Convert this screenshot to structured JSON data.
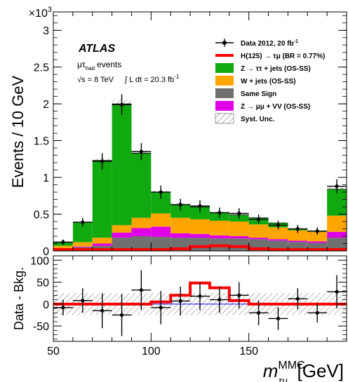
{
  "chart_data": [
    {
      "type": "bar",
      "stacked": true,
      "xlabel": "m",
      "xlabel_sup": "MMC",
      "xlabel_sub": "τμ",
      "xlabel_unit": "[GeV]",
      "ylabel": "Events / 10 GeV",
      "y_multiplier": "×10",
      "y_multiplier_exp": "3",
      "xlim": [
        50,
        200
      ],
      "ylim": [
        0,
        3.25
      ],
      "x_ticks": [
        50,
        100,
        150
      ],
      "y_ticks": [
        0,
        0.5,
        1,
        1.5,
        2,
        2.5,
        3
      ],
      "experiment": "ATLAS",
      "channel_mu": "μτ",
      "channel_sub": "had",
      "channel_suffix": "events",
      "energy_label": "√s = 8 TeV",
      "lumi_label": "∫ L dt = 20.3 fb",
      "lumi_exp": "-1",
      "legend_position": "top-right",
      "bin_edges": [
        50,
        60,
        70,
        80,
        90,
        100,
        110,
        120,
        130,
        140,
        150,
        160,
        170,
        180,
        190,
        200
      ],
      "series": [
        {
          "name": "Same Sign",
          "color": "#707070",
          "values": [
            0.04,
            0.05,
            0.07,
            0.18,
            0.2,
            0.19,
            0.18,
            0.18,
            0.17,
            0.17,
            0.16,
            0.14,
            0.12,
            0.11,
            0.18
          ]
        },
        {
          "name": "Z → μμ + VV (OS-SS)",
          "color": "#e000e8",
          "values": [
            0.0,
            0.01,
            0.03,
            0.07,
            0.11,
            0.14,
            0.06,
            0.05,
            0.04,
            0.03,
            0.02,
            0.02,
            0.02,
            0.02,
            0.08
          ]
        },
        {
          "name": "W + jets (OS-SS)",
          "color": "#ffa500",
          "values": [
            0.03,
            0.06,
            0.08,
            0.1,
            0.14,
            0.18,
            0.21,
            0.2,
            0.2,
            0.2,
            0.18,
            0.16,
            0.14,
            0.13,
            0.22
          ]
        },
        {
          "name": "Z → ττ + jets (OS-SS)",
          "color": "#10aa10",
          "values": [
            0.05,
            0.27,
            1.05,
            1.65,
            0.88,
            0.29,
            0.18,
            0.17,
            0.11,
            0.09,
            0.09,
            0.06,
            0.02,
            0.01,
            0.36
          ]
        }
      ],
      "signal": {
        "name": "H(125) → τμ (BR = 0.77%)",
        "color": "#ff0000",
        "values": [
          0.0,
          0.0,
          0.0,
          0.0,
          0.0,
          0.0,
          0.01,
          0.04,
          0.05,
          0.04,
          0.01,
          0.0,
          0.0,
          0.0,
          0.0
        ]
      },
      "data": {
        "name": "Data 2012, 20 fb",
        "name_exp": "-1",
        "x": [
          55,
          65,
          75,
          85,
          95,
          105,
          115,
          125,
          135,
          145,
          155,
          165,
          175,
          185,
          195
        ],
        "y": [
          0.12,
          0.39,
          1.22,
          1.99,
          1.35,
          0.8,
          0.63,
          0.61,
          0.52,
          0.51,
          0.43,
          0.35,
          0.3,
          0.27,
          0.88
        ],
        "yerr": [
          0.035,
          0.06,
          0.11,
          0.14,
          0.115,
          0.09,
          0.08,
          0.08,
          0.07,
          0.07,
          0.065,
          0.06,
          0.055,
          0.05,
          0.095
        ]
      },
      "syst_unc_label": "Syst. Unc."
    },
    {
      "type": "scatter",
      "xlabel": "",
      "ylabel": "Data - Bkg.",
      "xlim": [
        50,
        200
      ],
      "ylim": [
        -85,
        110
      ],
      "x_ticks": [
        50,
        100,
        150
      ],
      "y_ticks": [
        -50,
        0,
        50,
        100
      ],
      "x": [
        55,
        65,
        75,
        85,
        95,
        105,
        115,
        125,
        135,
        145,
        155,
        165,
        175,
        185,
        195
      ],
      "y": [
        -8,
        8,
        -15,
        -25,
        32,
        -8,
        7,
        18,
        10,
        20,
        -20,
        -33,
        12,
        -20,
        28
      ],
      "yerr": [
        18,
        28,
        40,
        48,
        45,
        38,
        33,
        32,
        30,
        30,
        28,
        26,
        24,
        22,
        38
      ],
      "signal": {
        "color": "#ff0000",
        "values": [
          0,
          0,
          0,
          0,
          0,
          5,
          20,
          48,
          37,
          8,
          0,
          0,
          0,
          0,
          0
        ]
      },
      "syst_band": 25
    }
  ]
}
